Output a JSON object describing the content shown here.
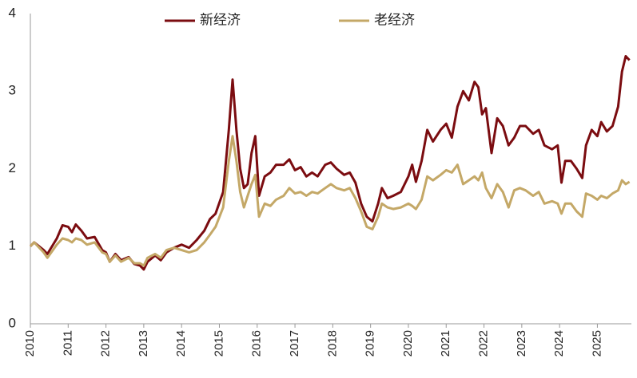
{
  "chart_data": {
    "type": "line",
    "x": [
      2010.0,
      2010.1,
      2010.35,
      2010.45,
      2010.7,
      2010.85,
      2011.0,
      2011.1,
      2011.2,
      2011.35,
      2011.5,
      2011.7,
      2011.9,
      2012.0,
      2012.1,
      2012.25,
      2012.4,
      2012.6,
      2012.75,
      2012.9,
      2013.0,
      2013.1,
      2013.3,
      2013.45,
      2013.6,
      2013.8,
      2014.0,
      2014.2,
      2014.4,
      2014.6,
      2014.75,
      2014.9,
      2015.1,
      2015.25,
      2015.35,
      2015.45,
      2015.55,
      2015.65,
      2015.75,
      2015.85,
      2015.95,
      2016.05,
      2016.2,
      2016.35,
      2016.5,
      2016.7,
      2016.85,
      2017.0,
      2017.15,
      2017.3,
      2017.45,
      2017.6,
      2017.8,
      2017.95,
      2018.1,
      2018.3,
      2018.45,
      2018.6,
      2018.75,
      2018.9,
      2019.05,
      2019.2,
      2019.3,
      2019.45,
      2019.6,
      2019.8,
      2020.0,
      2020.1,
      2020.2,
      2020.35,
      2020.5,
      2020.65,
      2020.85,
      2021.0,
      2021.15,
      2021.3,
      2021.45,
      2021.6,
      2021.75,
      2021.85,
      2021.95,
      2022.05,
      2022.2,
      2022.35,
      2022.5,
      2022.65,
      2022.8,
      2022.95,
      2023.1,
      2023.3,
      2023.45,
      2023.6,
      2023.8,
      2023.95,
      2024.05,
      2024.15,
      2024.3,
      2024.45,
      2024.6,
      2024.7,
      2024.85,
      2025.0,
      2025.1,
      2025.25,
      2025.4,
      2025.55,
      2025.65,
      2025.75,
      2025.85
    ],
    "series": [
      {
        "name": "新经济",
        "color": "#7b0c10",
        "values": [
          1.0,
          1.05,
          0.95,
          0.9,
          1.1,
          1.27,
          1.25,
          1.18,
          1.28,
          1.2,
          1.1,
          1.12,
          0.95,
          0.92,
          0.8,
          0.9,
          0.82,
          0.86,
          0.77,
          0.75,
          0.7,
          0.8,
          0.88,
          0.82,
          0.92,
          0.98,
          1.02,
          0.98,
          1.08,
          1.2,
          1.35,
          1.42,
          1.7,
          2.5,
          3.15,
          2.5,
          2.0,
          1.75,
          1.8,
          2.2,
          2.42,
          1.65,
          1.9,
          1.95,
          2.05,
          2.05,
          2.12,
          1.98,
          2.02,
          1.9,
          1.95,
          1.9,
          2.05,
          2.08,
          2.0,
          1.92,
          1.95,
          1.82,
          1.55,
          1.38,
          1.32,
          1.55,
          1.75,
          1.62,
          1.65,
          1.7,
          1.9,
          2.05,
          1.83,
          2.1,
          2.5,
          2.35,
          2.5,
          2.58,
          2.4,
          2.8,
          3.0,
          2.88,
          3.12,
          3.05,
          2.7,
          2.78,
          2.2,
          2.65,
          2.55,
          2.3,
          2.4,
          2.55,
          2.55,
          2.45,
          2.5,
          2.3,
          2.25,
          2.3,
          1.82,
          2.1,
          2.1,
          2.0,
          1.88,
          2.3,
          2.5,
          2.42,
          2.6,
          2.48,
          2.55,
          2.8,
          3.25,
          3.45,
          3.4
        ]
      },
      {
        "name": "老经济",
        "color": "#c4a867",
        "values": [
          1.0,
          1.05,
          0.92,
          0.85,
          1.02,
          1.1,
          1.08,
          1.05,
          1.1,
          1.08,
          1.02,
          1.05,
          0.92,
          0.9,
          0.8,
          0.88,
          0.8,
          0.85,
          0.78,
          0.78,
          0.75,
          0.85,
          0.9,
          0.85,
          0.95,
          0.98,
          0.95,
          0.92,
          0.95,
          1.05,
          1.15,
          1.25,
          1.5,
          2.1,
          2.42,
          2.1,
          1.7,
          1.5,
          1.65,
          1.8,
          1.92,
          1.38,
          1.55,
          1.52,
          1.6,
          1.65,
          1.75,
          1.68,
          1.7,
          1.65,
          1.7,
          1.68,
          1.75,
          1.8,
          1.75,
          1.72,
          1.75,
          1.62,
          1.45,
          1.25,
          1.22,
          1.38,
          1.55,
          1.5,
          1.48,
          1.5,
          1.55,
          1.52,
          1.48,
          1.6,
          1.9,
          1.85,
          1.92,
          1.98,
          1.95,
          2.05,
          1.8,
          1.85,
          1.9,
          1.85,
          1.95,
          1.75,
          1.62,
          1.8,
          1.7,
          1.5,
          1.72,
          1.75,
          1.72,
          1.65,
          1.7,
          1.55,
          1.58,
          1.55,
          1.42,
          1.55,
          1.55,
          1.45,
          1.38,
          1.68,
          1.65,
          1.6,
          1.65,
          1.62,
          1.68,
          1.72,
          1.85,
          1.8,
          1.83
        ]
      }
    ],
    "xlim": [
      2010,
      2025.9
    ],
    "xticks": [
      2010,
      2011,
      2012,
      2013,
      2014,
      2015,
      2016,
      2017,
      2018,
      2019,
      2020,
      2021,
      2022,
      2023,
      2024,
      2025
    ],
    "ylim": [
      0,
      4
    ],
    "yticks": [
      0,
      1,
      2,
      3,
      4
    ],
    "grid": false,
    "legend": "top"
  }
}
